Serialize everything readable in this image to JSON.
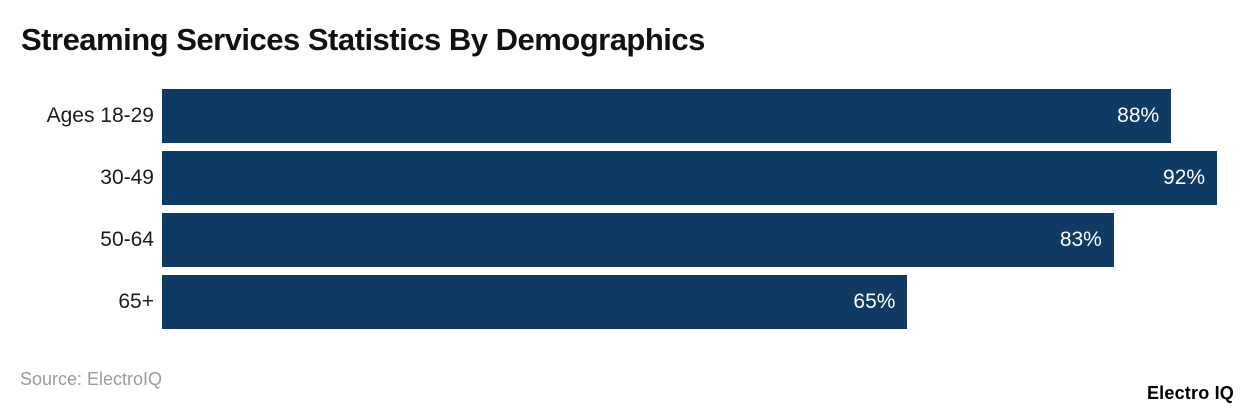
{
  "title": "Streaming Services Statistics By Demographics",
  "source_note": "Source: ElectroIQ",
  "brand": "Electro IQ",
  "colors": {
    "bar_fill": "#0f3a64",
    "title_text": "#111111",
    "category_text": "#1c1c1c",
    "value_text": "#ffffff",
    "source_text": "#9b9b9b",
    "background": "#ffffff"
  },
  "chart_data": {
    "type": "bar",
    "orientation": "horizontal",
    "title": "Streaming Services Statistics By Demographics",
    "categories": [
      "Ages 18-29",
      "30-49",
      "50-64",
      "65+"
    ],
    "values": [
      88,
      92,
      83,
      65
    ],
    "value_labels": [
      "88%",
      "92%",
      "83%",
      "65%"
    ],
    "xlabel": "",
    "ylabel": "",
    "xlim": [
      0,
      94
    ],
    "grid": false,
    "legend": false,
    "value_label_position": "inside-end"
  }
}
